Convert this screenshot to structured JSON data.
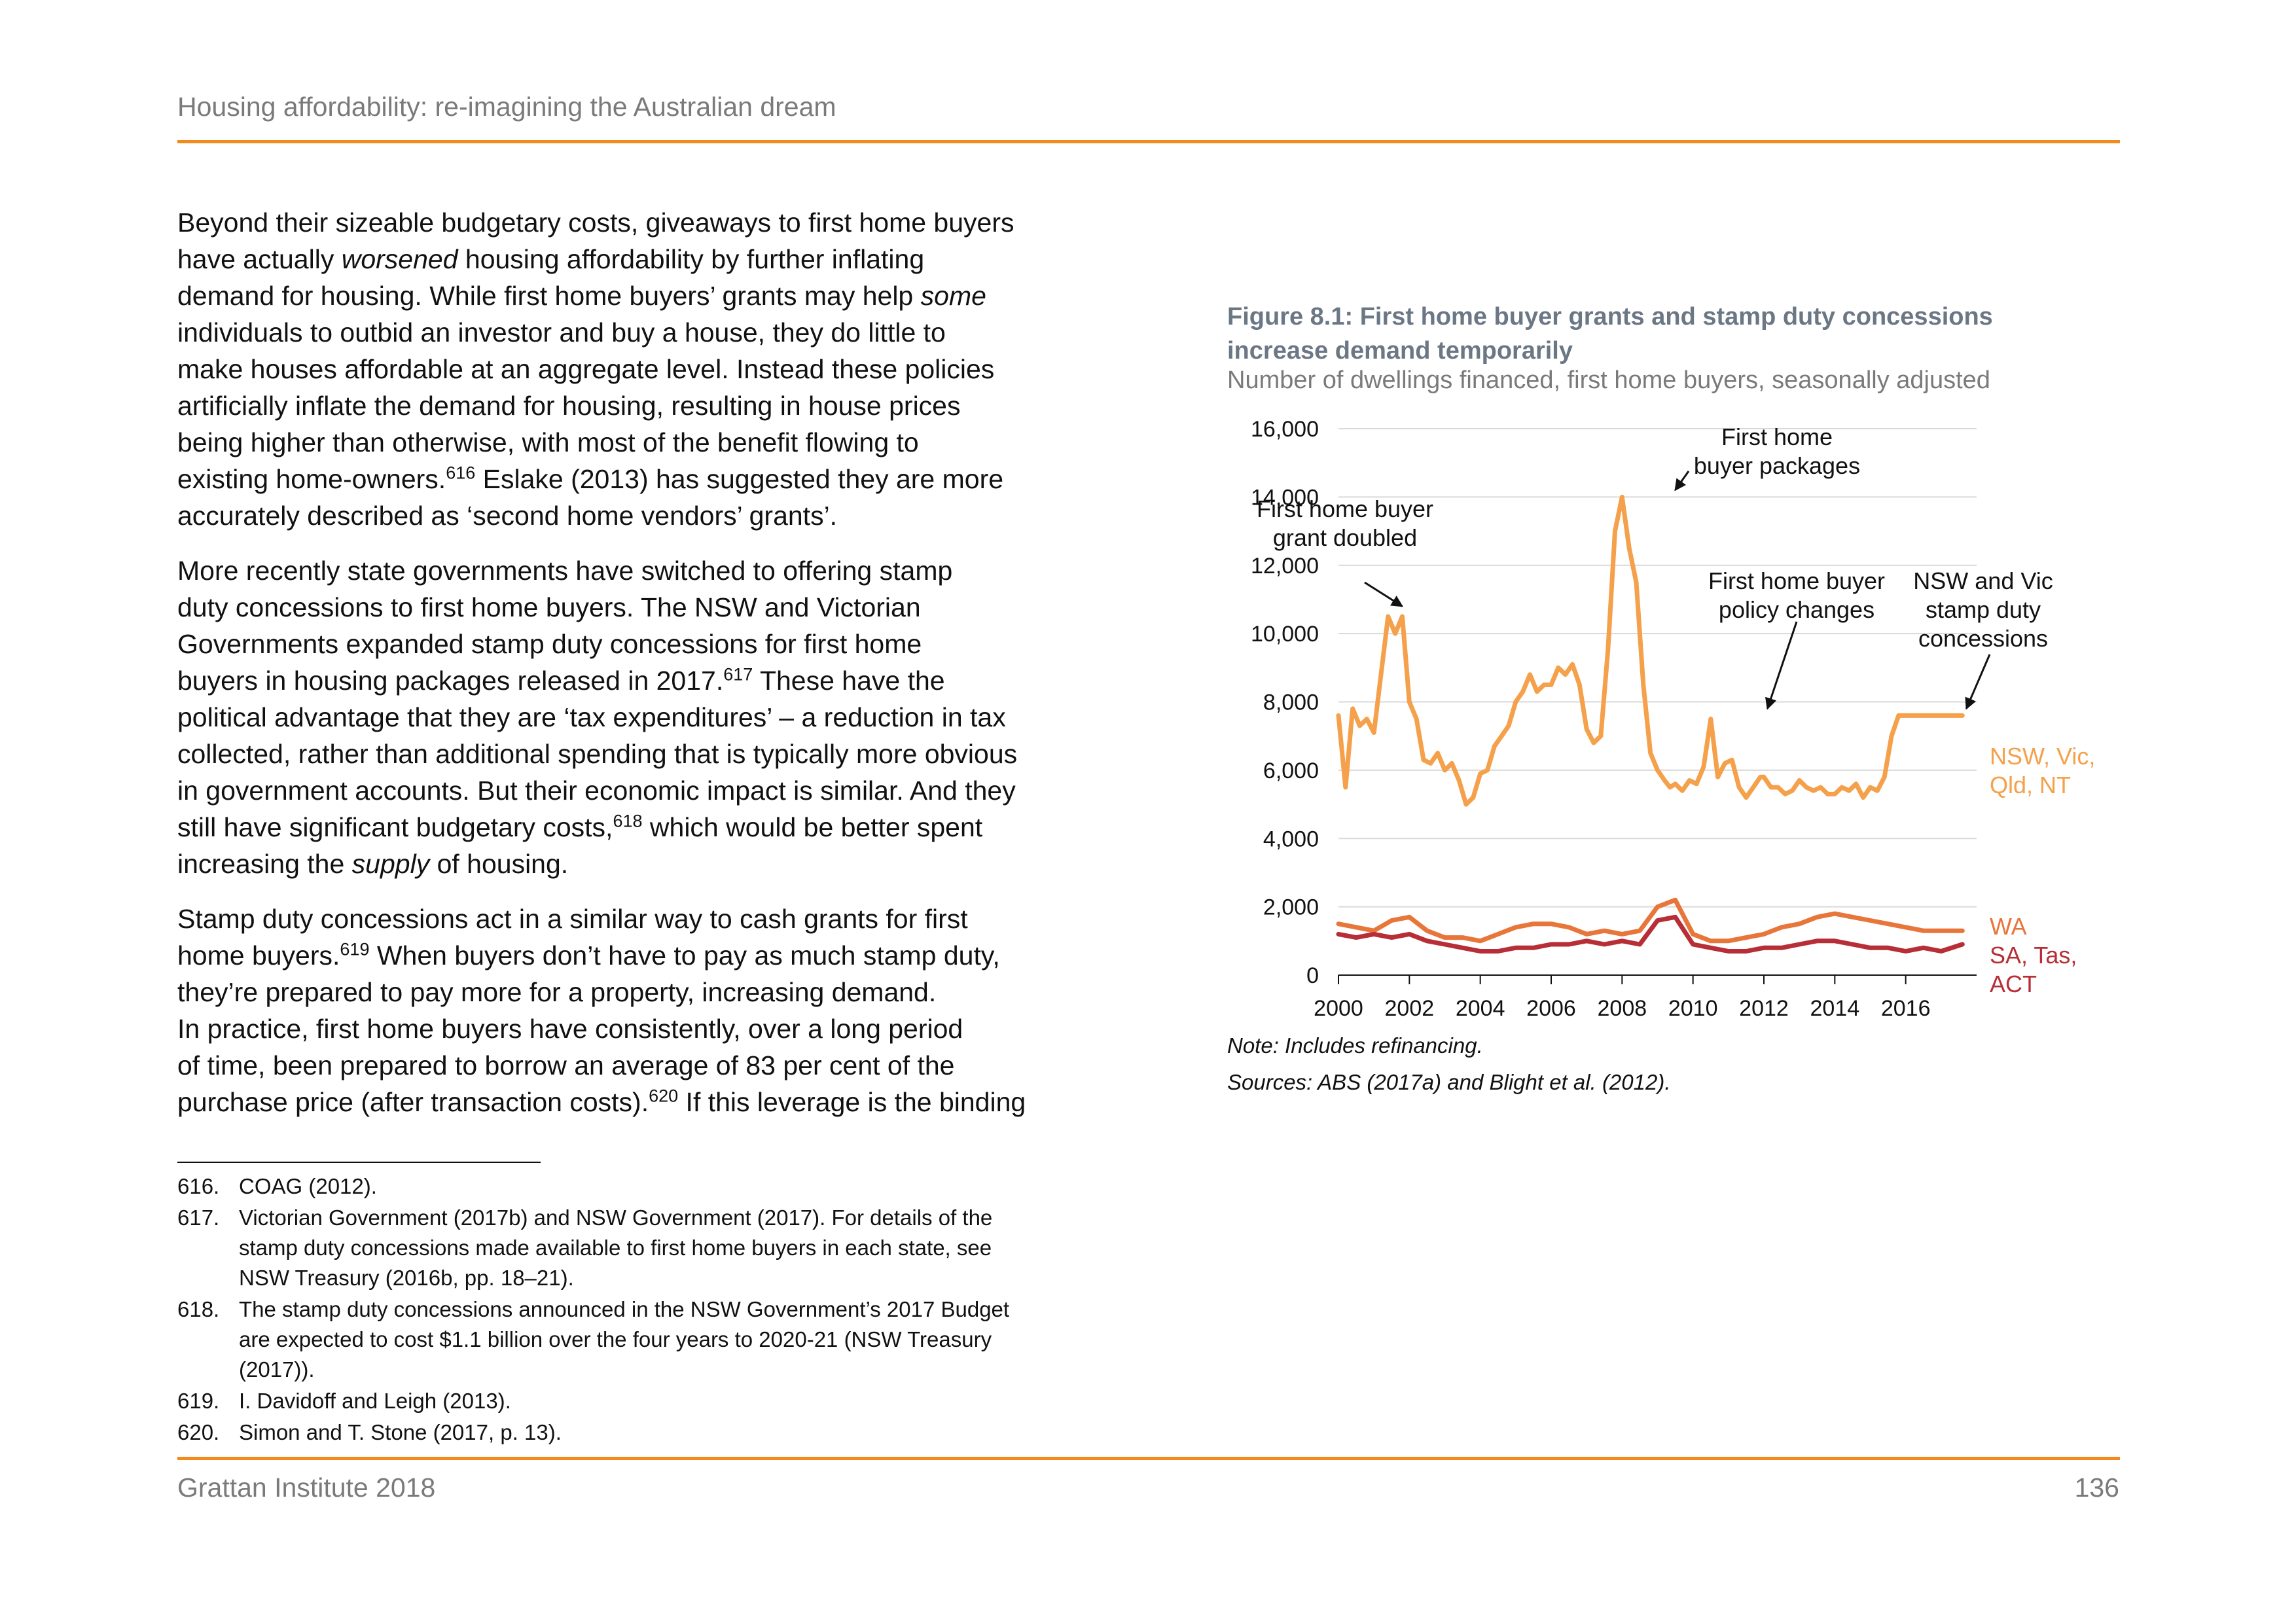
{
  "header": {
    "title": "Housing affordability: re-imagining the Australian dream"
  },
  "body": {
    "lines": [
      "Beyond their sizeable budgetary costs, giveaways to first home buyers",
      "have actually worsened housing affordability by further inflating",
      "demand for housing. While first home buyers’ grants may help some",
      "individuals to outbid an investor and buy a house, they do little to",
      "make houses affordable at an aggregate level. Instead these policies",
      "artificially inflate the demand for housing, resulting in house prices",
      "being higher than otherwise, with most of the benefit flowing to",
      "existing home-owners.616 Eslake (2013) has suggested they are more",
      "accurately described as ‘second home vendors’ grants’.",
      "More recently state governments have switched to offering stamp",
      "duty concessions to first home buyers. The NSW and Victorian",
      "Governments expanded stamp duty concessions for first home",
      "buyers in housing packages released in 2017.617 These have the",
      "political advantage that they are ‘tax expenditures’ – a reduction in tax",
      "collected, rather than additional spending that is typically more obvious",
      "in government accounts. But their economic impact is similar. And they",
      "still have significant budgetary costs,618 which would be better spent",
      "increasing the supply of housing.",
      "Stamp duty concessions act in a similar way to cash grants for first",
      "home buyers.619 When buyers don’t have to pay as much stamp duty,",
      "they’re prepared to pay more for a property, increasing demand.",
      "In practice, first home buyers have consistently, over a long period",
      "of time, been prepared to borrow an average of 83 per cent of the",
      "purchase price (after transaction costs).620 If this leverage is the binding"
    ]
  },
  "footnotes": [
    {
      "num": "616.",
      "lines": [
        "COAG (2012)."
      ]
    },
    {
      "num": "617.",
      "lines": [
        "Victorian Government (2017b) and NSW Government (2017). For details of the",
        "stamp duty concessions made available to first home buyers in each state, see",
        "NSW Treasury (2016b, pp. 18–21)."
      ]
    },
    {
      "num": "618.",
      "lines": [
        "The stamp duty concessions announced in the NSW Government’s 2017 Budget",
        "are expected to cost $1.1 billion over the four years to 2020-21 (NSW Treasury",
        "(2017))."
      ]
    },
    {
      "num": "619.",
      "lines": [
        "I. Davidoff and Leigh (2013)."
      ]
    },
    {
      "num": "620.",
      "lines": [
        "Simon and T. Stone (2017, p. 13)."
      ]
    }
  ],
  "footer": {
    "left": "Grattan Institute 2018",
    "page_number": "136"
  },
  "figure": {
    "title_line1": "Figure 8.1: First home buyer grants and stamp duty concessions",
    "title_line2": "increase demand temporarily",
    "subtitle": "Number of dwellings financed, first home buyers, seasonally adjusted",
    "note": "Note: Includes refinancing.",
    "sources": "Sources: ABS (2017a) and Blight et al. (2012)."
  },
  "chart_data": {
    "type": "line",
    "title": "Figure 8.1: First home buyer grants and stamp duty concessions increase demand temporarily",
    "subtitle": "Number of dwellings financed, first home buyers, seasonally adjusted",
    "xlim": [
      2000,
      2018
    ],
    "ylim": [
      0,
      16000
    ],
    "x_ticks": [
      2000,
      2002,
      2004,
      2006,
      2008,
      2010,
      2012,
      2014,
      2016
    ],
    "x_tick_labels": [
      "2000",
      "2002",
      "2004",
      "2006",
      "2008",
      "2010",
      "2012",
      "2014",
      "2016"
    ],
    "y_ticks": [
      0,
      2000,
      4000,
      6000,
      8000,
      10000,
      12000,
      14000,
      16000
    ],
    "y_tick_labels": [
      "0",
      "2,000",
      "4,000",
      "6,000",
      "8,000",
      "10,000",
      "12,000",
      "14,000",
      "16,000"
    ],
    "grid": "horizontal",
    "series": [
      {
        "name": "NSW, Vic, Qld, NT",
        "color": "#f5a04a",
        "x": [
          2000.0,
          2000.2,
          2000.4,
          2000.6,
          2000.8,
          2001.0,
          2001.2,
          2001.4,
          2001.6,
          2001.8,
          2002.0,
          2002.2,
          2002.4,
          2002.6,
          2002.8,
          2003.0,
          2003.2,
          2003.4,
          2003.6,
          2003.8,
          2004.0,
          2004.2,
          2004.4,
          2004.6,
          2004.8,
          2005.0,
          2005.2,
          2005.4,
          2005.6,
          2005.8,
          2006.0,
          2006.2,
          2006.4,
          2006.6,
          2006.8,
          2007.0,
          2007.2,
          2007.4,
          2007.6,
          2007.8,
          2008.0,
          2008.2,
          2008.4,
          2008.6,
          2008.8,
          2009.0,
          2009.2,
          2009.35,
          2009.5,
          2009.7,
          2009.9,
          2010.1,
          2010.3,
          2010.5,
          2010.7,
          2010.9,
          2011.1,
          2011.3,
          2011.5,
          2011.7,
          2011.9,
          2012.0,
          2012.2,
          2012.4,
          2012.6,
          2012.8,
          2013.0,
          2013.2,
          2013.4,
          2013.6,
          2013.8,
          2014.0,
          2014.2,
          2014.4,
          2014.6,
          2014.8,
          2015.0,
          2015.2,
          2015.4,
          2015.6,
          2015.8,
          2016.0,
          2016.2,
          2016.4,
          2016.6,
          2016.8,
          2017.0,
          2017.2,
          2017.4,
          2017.6
        ],
        "values": [
          7600,
          5500,
          7800,
          7300,
          7500,
          7100,
          8800,
          10500,
          10000,
          10500,
          8000,
          7500,
          6300,
          6200,
          6500,
          6000,
          6200,
          5700,
          5000,
          5200,
          5900,
          6000,
          6700,
          7000,
          7300,
          8000,
          8300,
          8800,
          8300,
          8500,
          8500,
          9000,
          8800,
          9100,
          8500,
          7200,
          6800,
          7000,
          9500,
          13000,
          14000,
          12500,
          11500,
          8500,
          6500,
          6000,
          5700,
          5500,
          5600,
          5400,
          5700,
          5600,
          6100,
          7500,
          5800,
          6200,
          6300,
          5500,
          5200,
          5500,
          5800,
          5800,
          5500,
          5500,
          5300,
          5400,
          5700,
          5500,
          5400,
          5500,
          5300,
          5300,
          5500,
          5400,
          5600,
          5200,
          5500,
          5400,
          5800,
          7000,
          7600,
          7600,
          7600,
          7600,
          7600,
          7600,
          7600,
          7600,
          7600,
          7600
        ]
      },
      {
        "name": "WA",
        "color": "#e8763a",
        "x": [
          2000.0,
          2000.5,
          2001.0,
          2001.5,
          2002.0,
          2002.5,
          2003.0,
          2003.5,
          2004.0,
          2004.5,
          2005.0,
          2005.5,
          2006.0,
          2006.5,
          2007.0,
          2007.5,
          2008.0,
          2008.5,
          2009.0,
          2009.5,
          2010.0,
          2010.5,
          2011.0,
          2011.5,
          2012.0,
          2012.5,
          2013.0,
          2013.5,
          2014.0,
          2014.5,
          2015.0,
          2015.5,
          2016.0,
          2016.5,
          2017.0,
          2017.6
        ],
        "values": [
          1500,
          1400,
          1300,
          1600,
          1700,
          1300,
          1100,
          1100,
          1000,
          1200,
          1400,
          1500,
          1500,
          1400,
          1200,
          1300,
          1200,
          1300,
          2000,
          2200,
          1200,
          1000,
          1000,
          1100,
          1200,
          1400,
          1500,
          1700,
          1800,
          1700,
          1600,
          1500,
          1400,
          1300,
          1300,
          1300
        ]
      },
      {
        "name": "SA, Tas, ACT",
        "color": "#b72e36",
        "x": [
          2000.0,
          2000.5,
          2001.0,
          2001.5,
          2002.0,
          2002.5,
          2003.0,
          2003.5,
          2004.0,
          2004.5,
          2005.0,
          2005.5,
          2006.0,
          2006.5,
          2007.0,
          2007.5,
          2008.0,
          2008.5,
          2009.0,
          2009.5,
          2010.0,
          2010.5,
          2011.0,
          2011.5,
          2012.0,
          2012.5,
          2013.0,
          2013.5,
          2014.0,
          2014.5,
          2015.0,
          2015.5,
          2016.0,
          2016.5,
          2017.0,
          2017.6
        ],
        "values": [
          1200,
          1100,
          1200,
          1100,
          1200,
          1000,
          900,
          800,
          700,
          700,
          800,
          800,
          900,
          900,
          1000,
          900,
          1000,
          900,
          1600,
          1700,
          900,
          800,
          700,
          700,
          800,
          800,
          900,
          1000,
          1000,
          900,
          800,
          800,
          700,
          800,
          700,
          900
        ]
      }
    ],
    "series_labels": [
      {
        "text": "NSW, Vic,",
        "color": "#f5a04a"
      },
      {
        "text": "Qld, NT",
        "color": "#f5a04a"
      },
      {
        "text": "WA",
        "color": "#e8763a"
      },
      {
        "text": "SA, Tas,",
        "color": "#b72e36"
      },
      {
        "text": "ACT",
        "color": "#b72e36"
      }
    ],
    "annotations": [
      {
        "lines": [
          "First home buyer",
          "grant doubled"
        ],
        "x": 2001.8,
        "y": 10500
      },
      {
        "lines": [
          "First home",
          "buyer packages"
        ],
        "x": 2009.4,
        "y": 14000
      },
      {
        "lines": [
          "First home buyer",
          "policy changes"
        ],
        "x": 2012.1,
        "y": 7500
      },
      {
        "lines": [
          "NSW and Vic",
          "stamp duty",
          "concessions"
        ],
        "x": 2017.6,
        "y": 7600
      }
    ]
  }
}
